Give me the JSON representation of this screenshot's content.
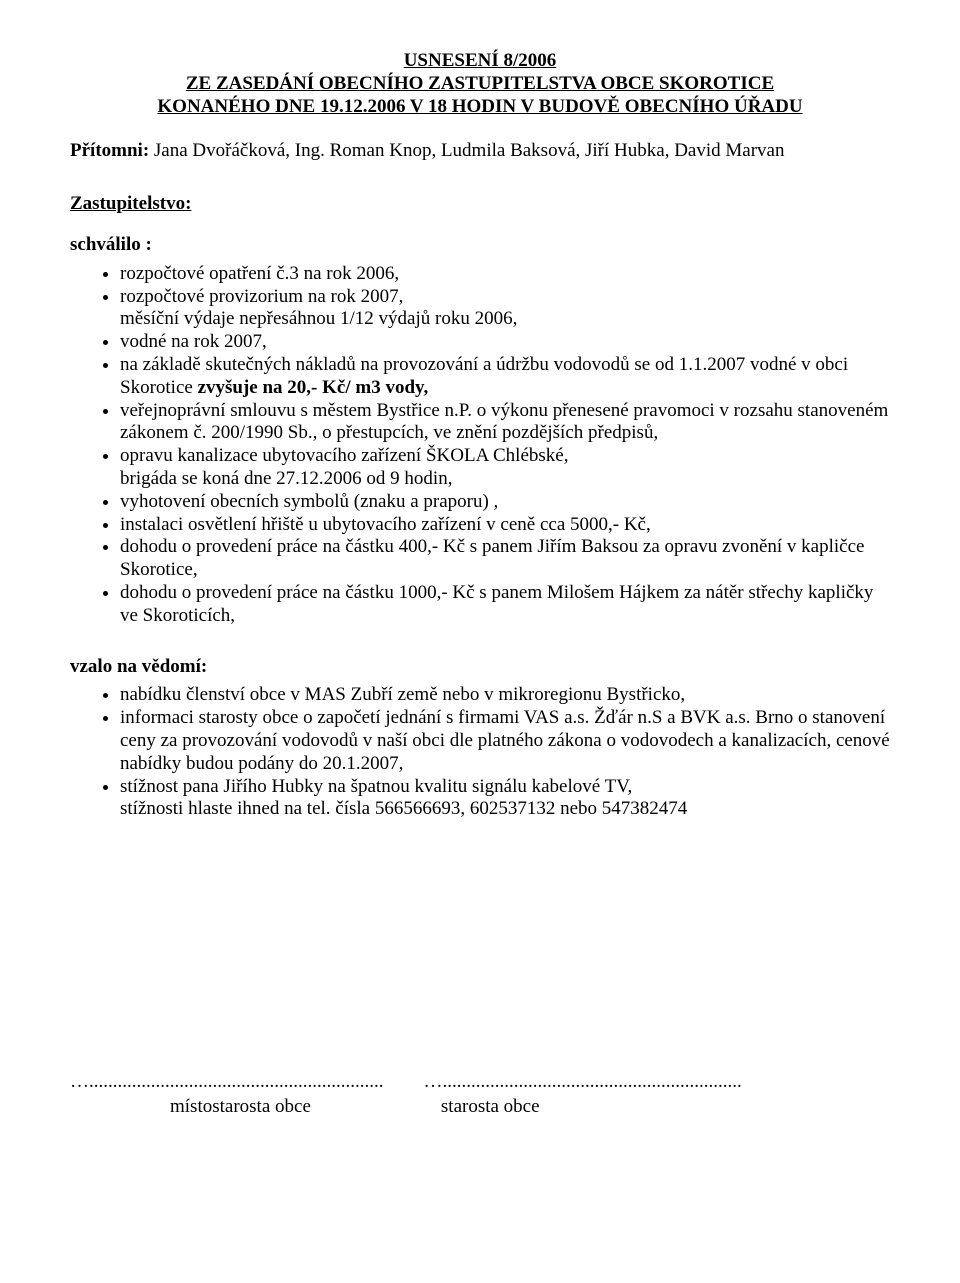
{
  "title": {
    "line1": "USNESENÍ 8/2006",
    "line2": "ZE ZASEDÁNÍ OBECNÍHO ZASTUPITELSTVA OBCE SKOROTICE",
    "line3": "KONANÉHO DNE 19.12.2006 V 18 HODIN V BUDOVĚ OBECNÍHO ÚŘADU"
  },
  "attendees": {
    "label": "Přítomni:",
    "names": " Jana Dvořáčková, Ing. Roman Knop, Ludmila Baksová, Jiří Hubka, David Marvan"
  },
  "section_heading": "Zastupitelstvo:",
  "approved": {
    "heading": "schválilo :",
    "items": [
      {
        "text": "rozpočtové opatření č.3 na rok 2006,"
      },
      {
        "text_pre": "rozpočtové provizorium na rok 2007,\nměsíční výdaje nepřesáhnou 1/12 výdajů roku 2006,"
      },
      {
        "text": "vodné na rok 2007,"
      },
      {
        "text_pre": "na základě skutečných nákladů na provozování a údržbu vodovodů se od 1.1.2007 vodné v obci Skorotice ",
        "emph": "zvyšuje na 20,- Kč/ m3 vody,",
        "text_post": ""
      },
      {
        "text": "veřejnoprávní smlouvu s městem Bystřice n.P. o výkonu přenesené pravomoci v rozsahu stanoveném zákonem č. 200/1990 Sb., o přestupcích, ve znění pozdějších předpisů,"
      },
      {
        "text": "opravu kanalizace ubytovacího zařízení ŠKOLA Chlébské,\nbrigáda se koná dne 27.12.2006 od 9 hodin,"
      },
      {
        "text": "vyhotovení obecních symbolů (znaku a praporu) ,"
      },
      {
        "text": "instalaci osvětlení hřiště u ubytovacího zařízení v ceně cca 5000,- Kč,"
      },
      {
        "text": "dohodu o provedení práce na částku 400,- Kč s panem Jiřím Baksou za opravu zvonění v kapličce Skorotice,"
      },
      {
        "text": "dohodu o provedení práce na částku 1000,- Kč s panem Milošem Hájkem za nátěr střechy kapličky ve Skoroticích,"
      }
    ]
  },
  "noted": {
    "heading": "vzalo na vědomí:",
    "items": [
      {
        "text": "nabídku členství obce v MAS Zubří země nebo v mikroregionu Bystřicko,"
      },
      {
        "text": "informaci starosty obce o započetí jednání s firmami VAS a.s. Žďár n.S a BVK a.s. Brno o stanovení ceny za provozování vodovodů v naší obci dle platného zákona  o vodovodech a kanalizacích, cenové nabídky budou podány do 20.1.2007,"
      },
      {
        "text": "stížnost pana Jiřího Hubky na špatnou kvalitu signálu  kabelové TV,\nstížnosti hlaste ihned na tel. čísla 566566693, 602537132 nebo 547382474"
      }
    ]
  },
  "footer": {
    "dots": "…..............................................................",
    "dots2": "…...............................................................",
    "sig_left": "místostarosta obce",
    "sig_right": "starosta obce"
  }
}
